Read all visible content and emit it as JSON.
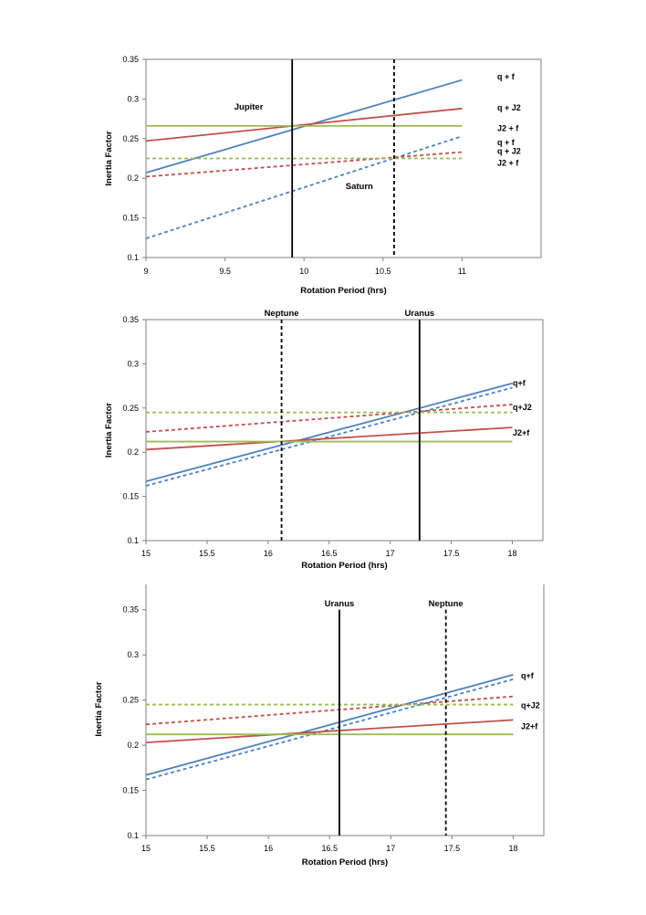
{
  "colors": {
    "blue": "#4f81bd",
    "red": "#c0504d",
    "green": "#9bbb59",
    "black": "#000000"
  },
  "chart_data": [
    {
      "type": "line",
      "xlabel": "Rotation Period (hrs)",
      "ylabel": "Inertia Factor",
      "xlim": [
        9,
        11.5
      ],
      "ylim": [
        0.1,
        0.35
      ],
      "x_ticks": [
        9,
        9.5,
        10,
        10.5,
        11
      ],
      "x_tick_labels": [
        "9",
        "9.5",
        "10",
        "10.5",
        "11"
      ],
      "y_ticks": [
        0.1,
        0.15,
        0.2,
        0.25,
        0.3,
        0.35
      ],
      "y_tick_labels": [
        "0.1",
        "0.15",
        "0.2",
        "0.25",
        "0.3",
        "0.35"
      ],
      "series": [
        {
          "name": "q + f",
          "color": "blue",
          "dash": false,
          "x": [
            9,
            11
          ],
          "y": [
            0.207,
            0.324
          ]
        },
        {
          "name": "q + J2",
          "color": "red",
          "dash": false,
          "x": [
            9,
            11
          ],
          "y": [
            0.247,
            0.288
          ]
        },
        {
          "name": "J2 + f",
          "color": "green",
          "dash": false,
          "x": [
            9,
            11
          ],
          "y": [
            0.266,
            0.266
          ]
        },
        {
          "name": "q + f",
          "color": "blue",
          "dash": true,
          "x": [
            9,
            11
          ],
          "y": [
            0.124,
            0.253
          ]
        },
        {
          "name": "q + J2",
          "color": "red",
          "dash": true,
          "x": [
            9,
            11
          ],
          "y": [
            0.202,
            0.233
          ]
        },
        {
          "name": "J2 + f",
          "color": "green",
          "dash": true,
          "x": [
            9,
            11
          ],
          "y": [
            0.225,
            0.225
          ]
        }
      ],
      "series_labels": [
        {
          "text": "q + f",
          "y": 0.328
        },
        {
          "text": "q + J2",
          "y": 0.289
        },
        {
          "text": "J2 + f",
          "y": 0.263
        },
        {
          "text": "q + f",
          "y": 0.245
        },
        {
          "text": "q + J2",
          "y": 0.234
        },
        {
          "text": "J2 + f",
          "y": 0.219
        }
      ],
      "vlines": [
        {
          "x": 9.925,
          "dash": false
        },
        {
          "x": 10.57,
          "dash": true
        }
      ],
      "annotations": [
        {
          "text": "Jupiter",
          "x": 9.65,
          "y": 0.29
        },
        {
          "text": "Saturn",
          "x": 10.35,
          "y": 0.19
        }
      ]
    },
    {
      "type": "line",
      "xlabel": "Rotation Period (hrs)",
      "ylabel": "Inertia Factor",
      "xlim": [
        15,
        18.25
      ],
      "ylim": [
        0.1,
        0.35
      ],
      "x_ticks": [
        15,
        15.5,
        16,
        16.5,
        17,
        17.5,
        18
      ],
      "x_tick_labels": [
        "15",
        "15.5",
        "16",
        "16.5",
        "17",
        "17.5",
        "18"
      ],
      "y_ticks": [
        0.1,
        0.15,
        0.2,
        0.25,
        0.3,
        0.35
      ],
      "y_tick_labels": [
        "0.1",
        "0.15",
        "0.2",
        "0.25",
        "0.3",
        "0.35"
      ],
      "series": [
        {
          "name": "q+f",
          "color": "blue",
          "dash": false,
          "x": [
            15,
            18
          ],
          "y": [
            0.167,
            0.278
          ]
        },
        {
          "name": "q+f",
          "color": "blue",
          "dash": true,
          "x": [
            15,
            18
          ],
          "y": [
            0.162,
            0.273
          ]
        },
        {
          "name": "q+J2",
          "color": "red",
          "dash": true,
          "x": [
            15,
            18
          ],
          "y": [
            0.223,
            0.254
          ]
        },
        {
          "name": "",
          "color": "green",
          "dash": true,
          "x": [
            15,
            18
          ],
          "y": [
            0.245,
            0.245
          ]
        },
        {
          "name": "J2+f",
          "color": "red",
          "dash": false,
          "x": [
            15,
            18
          ],
          "y": [
            0.203,
            0.228
          ]
        },
        {
          "name": "",
          "color": "green",
          "dash": false,
          "x": [
            15,
            18
          ],
          "y": [
            0.212,
            0.212
          ]
        }
      ],
      "series_labels": [
        {
          "text": "q+f",
          "y": 0.278
        },
        {
          "text": "q+J2",
          "y": 0.251
        },
        {
          "text": "J2+f",
          "y": 0.222
        }
      ],
      "vlines": [
        {
          "x": 16.11,
          "dash": true,
          "ytop": 0.35
        },
        {
          "x": 17.24,
          "dash": false,
          "ytop": 0.35
        }
      ],
      "annotations": [
        {
          "text": "Neptune",
          "x": 16.11,
          "y": 0.357
        },
        {
          "text": "Uranus",
          "x": 17.24,
          "y": 0.357
        }
      ]
    },
    {
      "type": "line",
      "xlabel": "Rotation Period (hrs)",
      "ylabel": "Inertia Factor",
      "xlim": [
        15,
        18.25
      ],
      "ylim": [
        0.1,
        0.38
      ],
      "x_ticks": [
        15,
        15.5,
        16,
        16.5,
        17,
        17.5,
        18
      ],
      "x_tick_labels": [
        "15",
        "15.5",
        "16",
        "16.5",
        "17",
        "17.5",
        "18"
      ],
      "y_ticks": [
        0.1,
        0.15,
        0.2,
        0.25,
        0.3,
        0.35
      ],
      "y_tick_labels": [
        "0.1",
        "0.15",
        "0.2",
        "0.25",
        "0.3",
        "0.35"
      ],
      "series": [
        {
          "name": "q+f",
          "color": "blue",
          "dash": false,
          "x": [
            15,
            18
          ],
          "y": [
            0.167,
            0.278
          ]
        },
        {
          "name": "q+f",
          "color": "blue",
          "dash": true,
          "x": [
            15,
            18
          ],
          "y": [
            0.162,
            0.273
          ]
        },
        {
          "name": "q+J2",
          "color": "red",
          "dash": true,
          "x": [
            15,
            18
          ],
          "y": [
            0.223,
            0.254
          ]
        },
        {
          "name": "",
          "color": "green",
          "dash": true,
          "x": [
            15,
            18
          ],
          "y": [
            0.245,
            0.245
          ]
        },
        {
          "name": "J2+f",
          "color": "red",
          "dash": false,
          "x": [
            15,
            18
          ],
          "y": [
            0.203,
            0.228
          ]
        },
        {
          "name": "",
          "color": "green",
          "dash": false,
          "x": [
            15,
            18
          ],
          "y": [
            0.212,
            0.212
          ]
        }
      ],
      "series_labels": [
        {
          "text": "q+f",
          "y": 0.277
        },
        {
          "text": "q+J2",
          "y": 0.244
        },
        {
          "text": "J2+f",
          "y": 0.221
        }
      ],
      "vlines": [
        {
          "x": 16.58,
          "dash": false,
          "ytop": 0.35
        },
        {
          "x": 17.45,
          "dash": true,
          "ytop": 0.35
        }
      ],
      "annotations": [
        {
          "text": "Uranus",
          "x": 16.58,
          "y": 0.357
        },
        {
          "text": "Neptune",
          "x": 17.45,
          "y": 0.357
        }
      ]
    }
  ]
}
